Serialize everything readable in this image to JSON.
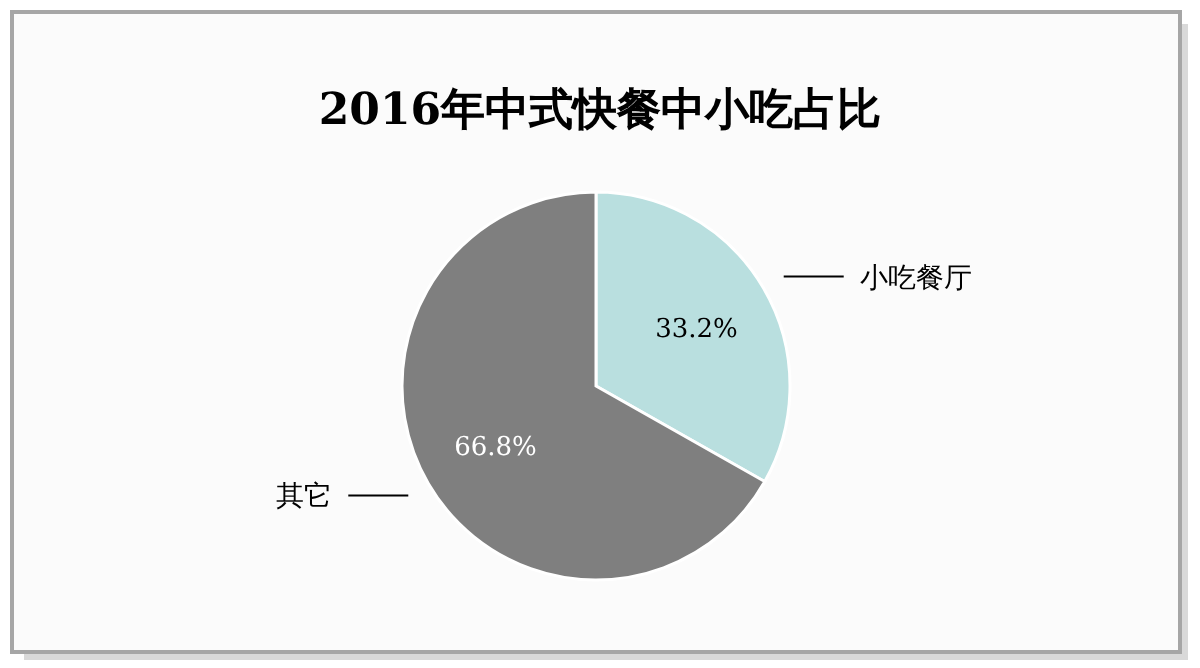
{
  "chart_data": {
    "type": "pie",
    "title": "2016年中式快餐中小吃占比",
    "categories": [
      "小吃餐厅",
      "其它"
    ],
    "values": [
      33.2,
      66.8
    ],
    "colors": [
      "#b9dfdf",
      "#7f7f7f"
    ],
    "value_labels": [
      "33.2%",
      "66.8%"
    ],
    "legend": false
  }
}
